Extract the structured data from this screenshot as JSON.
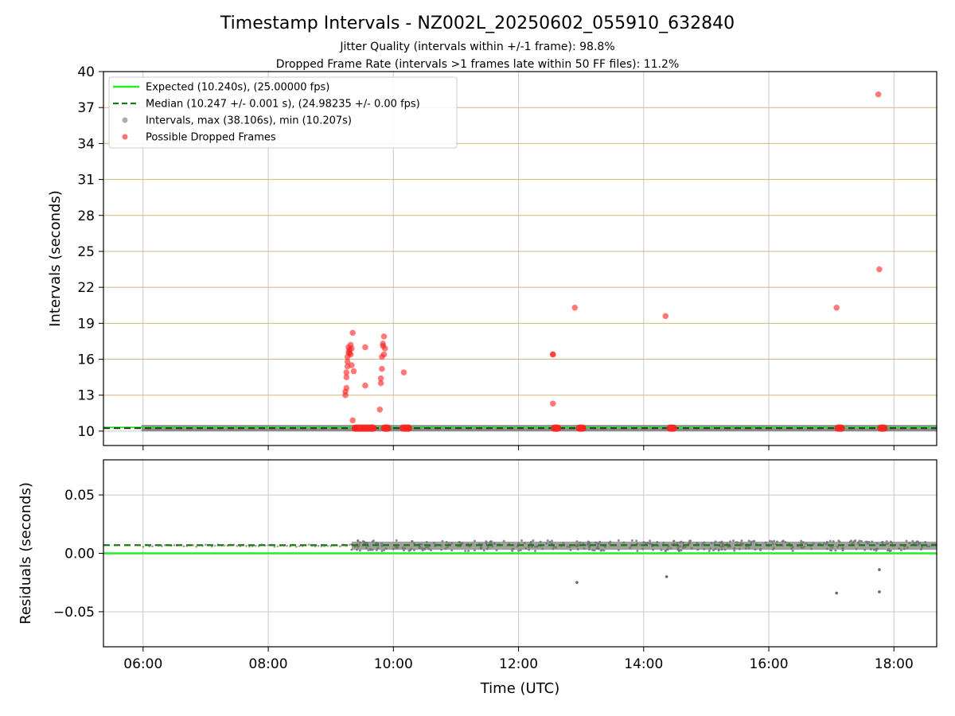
{
  "title": "Timestamp Intervals - NZ002L_20250602_055910_632840",
  "subtitle_1": "Jitter Quality (intervals within +/-1 frame): 98.8%",
  "subtitle_2": "Dropped Frame Rate (intervals >1 frames late within 50 FF files): 11.2%",
  "colors": {
    "expected": "#22ee22",
    "median": "#1a7a1a",
    "intervals": "#808080",
    "dropped": "#ff2020",
    "hgrid_top": "#d2b87a",
    "grid": "#c8c8c8"
  },
  "legend": [
    {
      "label": "Expected (10.240s), (25.00000 fps)",
      "kind": "solid-line",
      "color": "#22ee22"
    },
    {
      "label": "Median (10.247 +/- 0.001 s), (24.98235 +/- 0.00 fps)",
      "kind": "dashed-line",
      "color": "#1a7a1a"
    },
    {
      "label": "Intervals, max (38.106s), min (10.207s)",
      "kind": "dot",
      "color": "#999999"
    },
    {
      "label": "Possible Dropped Frames",
      "kind": "dot",
      "color": "#ff5050"
    }
  ],
  "chart_data": [
    {
      "type": "scatter",
      "ylabel": "Intervals (seconds)",
      "xlabel": "",
      "xlim": [
        "05:22",
        "18:41"
      ],
      "ylim": [
        8.8,
        40
      ],
      "yticks": [
        10,
        13,
        16,
        19,
        22,
        25,
        28,
        31,
        34,
        37,
        40
      ],
      "xticks": [
        "06:00",
        "08:00",
        "10:00",
        "12:00",
        "14:00",
        "16:00",
        "18:00"
      ],
      "grid": true,
      "legend_position": "top-left",
      "expected_interval": 10.24,
      "median_interval": 10.247,
      "series": [
        {
          "name": "Possible Dropped Frames",
          "points": [
            [
              "09:14",
              13.0
            ],
            [
              "09:14",
              13.3
            ],
            [
              "09:15",
              13.6
            ],
            [
              "09:15",
              14.5
            ],
            [
              "09:15",
              14.9
            ],
            [
              "09:16",
              15.4
            ],
            [
              "09:16",
              15.8
            ],
            [
              "09:16",
              16.2
            ],
            [
              "09:17",
              16.6
            ],
            [
              "09:17",
              17.0
            ],
            [
              "09:18",
              16.5
            ],
            [
              "09:18",
              16.8
            ],
            [
              "09:19",
              17.2
            ],
            [
              "09:19",
              16.4
            ],
            [
              "09:20",
              15.5
            ],
            [
              "09:20",
              16.9
            ],
            [
              "09:21",
              18.2
            ],
            [
              "09:21",
              10.9
            ],
            [
              "09:22",
              15.0
            ],
            [
              "09:33",
              17.0
            ],
            [
              "09:33",
              13.8
            ],
            [
              "09:47",
              11.8
            ],
            [
              "09:48",
              14.0
            ],
            [
              "09:48",
              14.4
            ],
            [
              "09:49",
              15.2
            ],
            [
              "09:49",
              16.2
            ],
            [
              "09:50",
              17.1
            ],
            [
              "09:50",
              17.3
            ],
            [
              "09:51",
              17.9
            ],
            [
              "09:51",
              16.4
            ],
            [
              "09:52",
              16.9
            ],
            [
              "10:10",
              14.9
            ],
            [
              "12:33",
              16.4
            ],
            [
              "12:33",
              16.4
            ],
            [
              "12:33",
              12.3
            ],
            [
              "12:54",
              20.3
            ],
            [
              "14:21",
              19.6
            ],
            [
              "17:05",
              20.3
            ],
            [
              "17:45",
              38.1
            ],
            [
              "17:46",
              23.5
            ]
          ],
          "baseline_clusters": [
            [
              "09:20",
              "09:44"
            ],
            [
              "09:48",
              "09:58"
            ],
            [
              "10:06",
              "10:18"
            ],
            [
              "12:31",
              "12:41"
            ],
            [
              "12:55",
              "13:05"
            ],
            [
              "14:22",
              "14:32"
            ],
            [
              "17:03",
              "17:13"
            ],
            [
              "17:44",
              "17:54"
            ]
          ],
          "baseline_value": 10.25
        },
        {
          "name": "Intervals",
          "range": [
            "06:00",
            "18:41"
          ],
          "value": 10.247
        }
      ]
    },
    {
      "type": "scatter",
      "ylabel": "Residuals (seconds)",
      "xlabel": "Time (UTC)",
      "xlim": [
        "05:22",
        "18:41"
      ],
      "ylim": [
        -0.08,
        0.08
      ],
      "yticks": [
        0.05,
        0.0,
        -0.05
      ],
      "ytick_labels": [
        "0.05",
        "0.00",
        "−0.05"
      ],
      "xticks": [
        "06:00",
        "08:00",
        "10:00",
        "12:00",
        "14:00",
        "16:00",
        "18:00"
      ],
      "xtick_labels": [
        "06:00",
        "08:00",
        "10:00",
        "12:00",
        "14:00",
        "16:00",
        "18:00"
      ],
      "grid": true,
      "expected_residual": 0.0,
      "median_residual": 0.007,
      "series": [
        {
          "name": "Residuals",
          "outliers": [
            [
              "12:56",
              -0.025
            ],
            [
              "14:22",
              -0.02
            ],
            [
              "17:05",
              -0.034
            ],
            [
              "17:46",
              -0.014
            ],
            [
              "17:46",
              -0.033
            ]
          ],
          "band": [
            "09:20",
            "18:41",
            0.003,
            0.01
          ]
        }
      ]
    }
  ]
}
